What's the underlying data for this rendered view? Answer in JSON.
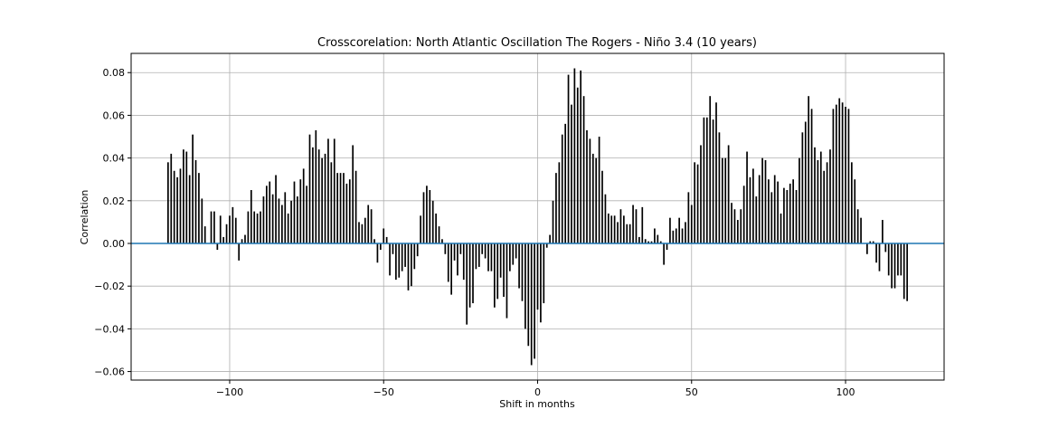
{
  "chart_data": {
    "type": "bar",
    "title": "Crosscorelation: North Atlantic Oscillation The Rogers - Niño 3.4 (10 years)",
    "xlabel": "Shift in months",
    "ylabel": "Correlation",
    "xlim": [
      -132,
      132
    ],
    "ylim": [
      -0.064,
      0.089
    ],
    "xticks": [
      -100,
      -50,
      0,
      50,
      100
    ],
    "xtick_labels": [
      "−100",
      "−50",
      "0",
      "50",
      "100"
    ],
    "yticks": [
      -0.06,
      -0.04,
      -0.02,
      0.0,
      0.02,
      0.04,
      0.06,
      0.08
    ],
    "ytick_labels": [
      "−0.06",
      "−0.04",
      "−0.02",
      "0.00",
      "0.02",
      "0.04",
      "0.06",
      "0.08"
    ],
    "grid": true,
    "bar_color": "#000000",
    "zero_line_color": "#1f77b4",
    "x_start": -120,
    "x_step": 1,
    "values": [
      0.038,
      0.042,
      0.034,
      0.031,
      0.035,
      0.044,
      0.043,
      0.032,
      0.051,
      0.039,
      0.033,
      0.021,
      0.008,
      0.0,
      0.015,
      0.015,
      -0.003,
      0.013,
      0.003,
      0.009,
      0.013,
      0.017,
      0.012,
      -0.008,
      0.002,
      0.004,
      0.015,
      0.025,
      0.015,
      0.014,
      0.015,
      0.022,
      0.027,
      0.029,
      0.023,
      0.032,
      0.021,
      0.018,
      0.024,
      0.014,
      0.02,
      0.029,
      0.022,
      0.03,
      0.035,
      0.027,
      0.051,
      0.045,
      0.053,
      0.044,
      0.04,
      0.042,
      0.049,
      0.038,
      0.049,
      0.033,
      0.033,
      0.033,
      0.028,
      0.03,
      0.046,
      0.034,
      0.01,
      0.009,
      0.012,
      0.018,
      0.016,
      0.002,
      -0.009,
      -0.003,
      0.007,
      0.003,
      -0.015,
      -0.005,
      -0.017,
      -0.016,
      -0.013,
      -0.011,
      -0.022,
      -0.02,
      -0.012,
      -0.006,
      0.013,
      0.024,
      0.027,
      0.025,
      0.02,
      0.014,
      0.008,
      0.002,
      -0.005,
      -0.018,
      -0.024,
      -0.008,
      -0.015,
      -0.005,
      -0.017,
      -0.038,
      -0.03,
      -0.028,
      -0.012,
      -0.011,
      -0.005,
      -0.007,
      -0.013,
      -0.013,
      -0.03,
      -0.026,
      -0.016,
      -0.025,
      -0.035,
      -0.013,
      -0.01,
      -0.007,
      -0.021,
      -0.027,
      -0.04,
      -0.048,
      -0.057,
      -0.054,
      -0.031,
      -0.037,
      -0.028,
      -0.002,
      0.004,
      0.02,
      0.033,
      0.038,
      0.051,
      0.056,
      0.079,
      0.065,
      0.082,
      0.073,
      0.081,
      0.069,
      0.053,
      0.049,
      0.042,
      0.04,
      0.05,
      0.034,
      0.023,
      0.014,
      0.013,
      0.013,
      0.01,
      0.016,
      0.013,
      0.009,
      0.009,
      0.018,
      0.016,
      0.003,
      0.017,
      0.002,
      0.001,
      0.001,
      0.007,
      0.004,
      0.001,
      -0.01,
      -0.003,
      0.012,
      0.006,
      0.007,
      0.012,
      0.007,
      0.01,
      0.024,
      0.018,
      0.038,
      0.037,
      0.046,
      0.059,
      0.059,
      0.069,
      0.058,
      0.066,
      0.052,
      0.04,
      0.04,
      0.046,
      0.019,
      0.016,
      0.011,
      0.016,
      0.027,
      0.043,
      0.031,
      0.035,
      0.022,
      0.032,
      0.04,
      0.039,
      0.03,
      0.024,
      0.032,
      0.029,
      0.014,
      0.026,
      0.025,
      0.028,
      0.03,
      0.025,
      0.04,
      0.052,
      0.057,
      0.069,
      0.063,
      0.045,
      0.039,
      0.043,
      0.034,
      0.038,
      0.044,
      0.063,
      0.065,
      0.068,
      0.066,
      0.064,
      0.063,
      0.038,
      0.03,
      0.016,
      0.012,
      0.0,
      -0.005,
      0.001,
      0.001,
      -0.009,
      -0.013,
      0.011,
      -0.004,
      -0.015,
      -0.021,
      -0.021,
      -0.015,
      -0.015,
      -0.026,
      -0.027
    ]
  }
}
